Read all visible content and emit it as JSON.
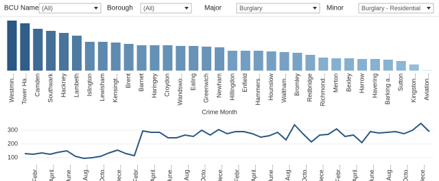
{
  "filters": [
    {
      "label": "BCU Name",
      "value": "(All)"
    },
    {
      "label": "Borough",
      "value": "(All)"
    },
    {
      "label": "Major",
      "value": "Burglary"
    },
    {
      "label": "Minor",
      "value": "Burglary - Residential"
    }
  ],
  "chart_data": [
    {
      "type": "bar",
      "categories": [
        "Westmin...",
        "Tower Ha...",
        "Camden",
        "Southwark",
        "Hackney",
        "Lambeth",
        "Islington",
        "Lewisham",
        "Kensingt...",
        "Brent",
        "Barnet",
        "Haringey",
        "Croydon",
        "Wandswo...",
        "Ealing",
        "Greenwich",
        "Newham",
        "Hillingdon",
        "Enfield",
        "Hammers...",
        "Hounslow",
        "Waltham...",
        "Bromley",
        "Redbridge",
        "Richmond...",
        "Merton",
        "Bexley",
        "Harrow",
        "Havering",
        "Barking a...",
        "Sutton",
        "Kingston...",
        "Aviation..."
      ],
      "values": [
        73,
        69,
        61,
        58,
        55,
        51,
        42,
        42,
        41,
        39,
        37,
        37,
        37,
        36,
        36,
        35,
        34,
        29,
        29,
        29,
        28,
        27,
        26,
        23,
        19,
        18,
        18,
        17,
        17,
        16,
        14,
        9,
        0.5
      ],
      "ylim": [
        0,
        75
      ],
      "color_range": [
        "#2a5783",
        "#a3cce9"
      ]
    },
    {
      "type": "line",
      "title": "Crime Month",
      "categories": [
        null,
        "Febr...",
        null,
        "April...",
        null,
        "June...",
        null,
        "Aug...",
        null,
        "Octo...",
        null,
        "Dece...",
        null,
        "Febr...",
        null,
        "April...",
        null,
        "June...",
        null,
        "Aug...",
        null,
        "Octo...",
        null,
        "Dece...",
        null,
        "Febr...",
        null,
        "April...",
        null,
        "June...",
        null,
        "Aug...",
        null,
        "Octo...",
        null,
        "Dece...",
        null,
        "Febr...",
        null,
        "April...",
        null,
        "June...",
        null,
        "Aug...",
        null,
        "Octo...",
        null,
        "Dece...",
        null
      ],
      "series": [
        {
          "color": "#2a5783",
          "values": [
            130,
            125,
            135,
            125,
            140,
            150,
            110,
            95,
            100,
            110,
            135,
            155,
            130,
            115,
            295,
            285,
            285,
            245,
            245,
            265,
            255,
            300,
            265,
            305,
            275,
            290,
            290,
            275,
            250,
            260,
            285,
            230,
            340,
            275,
            215,
            265,
            270,
            310,
            255,
            265,
            210,
            290,
            280,
            285,
            290,
            275,
            300,
            350,
            290
          ]
        }
      ],
      "ylim": [
        60,
        370
      ],
      "yticks": [
        100,
        200,
        300
      ]
    }
  ]
}
